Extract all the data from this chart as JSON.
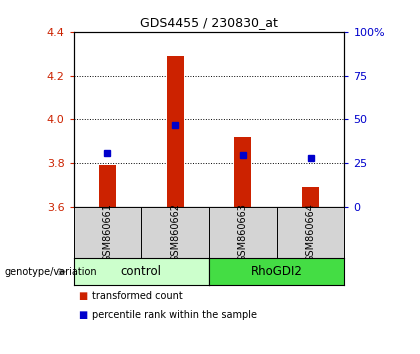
{
  "title": "GDS4455 / 230830_at",
  "samples": [
    "GSM860661",
    "GSM860662",
    "GSM860663",
    "GSM860664"
  ],
  "transformed_counts": [
    3.79,
    4.29,
    3.92,
    3.69
  ],
  "percentile_ranks": [
    31,
    47,
    30,
    28
  ],
  "groups": [
    {
      "label": "control",
      "samples": [
        0,
        1
      ],
      "color": "#ccffcc"
    },
    {
      "label": "RhoGDI2",
      "samples": [
        2,
        3
      ],
      "color": "#44dd44"
    }
  ],
  "ylim_left": [
    3.6,
    4.4
  ],
  "ylim_right": [
    0,
    100
  ],
  "yticks_left": [
    3.6,
    3.8,
    4.0,
    4.2,
    4.4
  ],
  "yticks_right": [
    0,
    25,
    50,
    75,
    100
  ],
  "bar_color": "#cc2200",
  "dot_color": "#0000cc",
  "bar_bottom": 3.6,
  "bar_width": 0.25,
  "legend_bar_label": "transformed count",
  "legend_dot_label": "percentile rank within the sample",
  "genotype_label": "genotype/variation",
  "plot_bg": "#ffffff",
  "sample_box_bg": "#d4d4d4",
  "xlim": [
    -0.5,
    3.5
  ]
}
